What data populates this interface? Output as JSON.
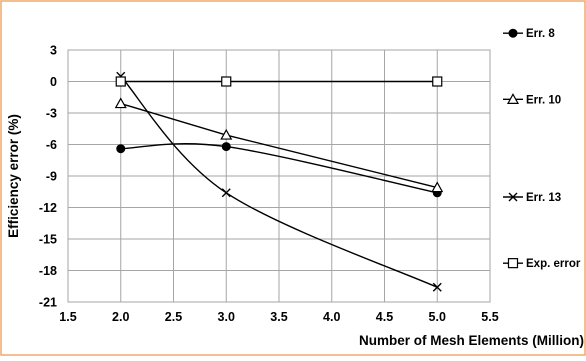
{
  "colors": {
    "frame_border": "#f0a868",
    "plot_background": "#ffffff",
    "grid": "#a6a6a6",
    "series_line": "#000000"
  },
  "chart_data": {
    "type": "scatter",
    "title": "",
    "xlabel": "Number of Mesh Elements (Million)",
    "ylabel": "Efficiency error (%)",
    "xlim": [
      1.5,
      5.5
    ],
    "ylim": [
      -21,
      3
    ],
    "grid": true,
    "legend_position": "right",
    "x_ticks": [
      "1.5",
      "2.0",
      "2.5",
      "3.0",
      "3.5",
      "4.0",
      "4.5",
      "5.0",
      "5.5"
    ],
    "y_ticks": [
      "3",
      "0",
      "-3",
      "-6",
      "-9",
      "-12",
      "-15",
      "-18",
      "-21"
    ],
    "series": [
      {
        "name": "Err. 8",
        "marker": "filled-circle",
        "smooth": true,
        "x": [
          2.0,
          3.0,
          5.0
        ],
        "y": [
          -6.4,
          -6.2,
          -10.6
        ]
      },
      {
        "name": "Err. 10",
        "marker": "open-triangle",
        "smooth": false,
        "x": [
          2.0,
          3.0,
          5.0
        ],
        "y": [
          -2.1,
          -5.1,
          -10.1
        ]
      },
      {
        "name": "Err. 13",
        "marker": "cross",
        "smooth": true,
        "x": [
          2.0,
          3.0,
          5.0
        ],
        "y": [
          0.5,
          -10.6,
          -19.6
        ]
      },
      {
        "name": "Exp. error",
        "marker": "open-square",
        "smooth": false,
        "x": [
          2.0,
          3.0,
          5.0
        ],
        "y": [
          0,
          0,
          0
        ]
      }
    ]
  }
}
